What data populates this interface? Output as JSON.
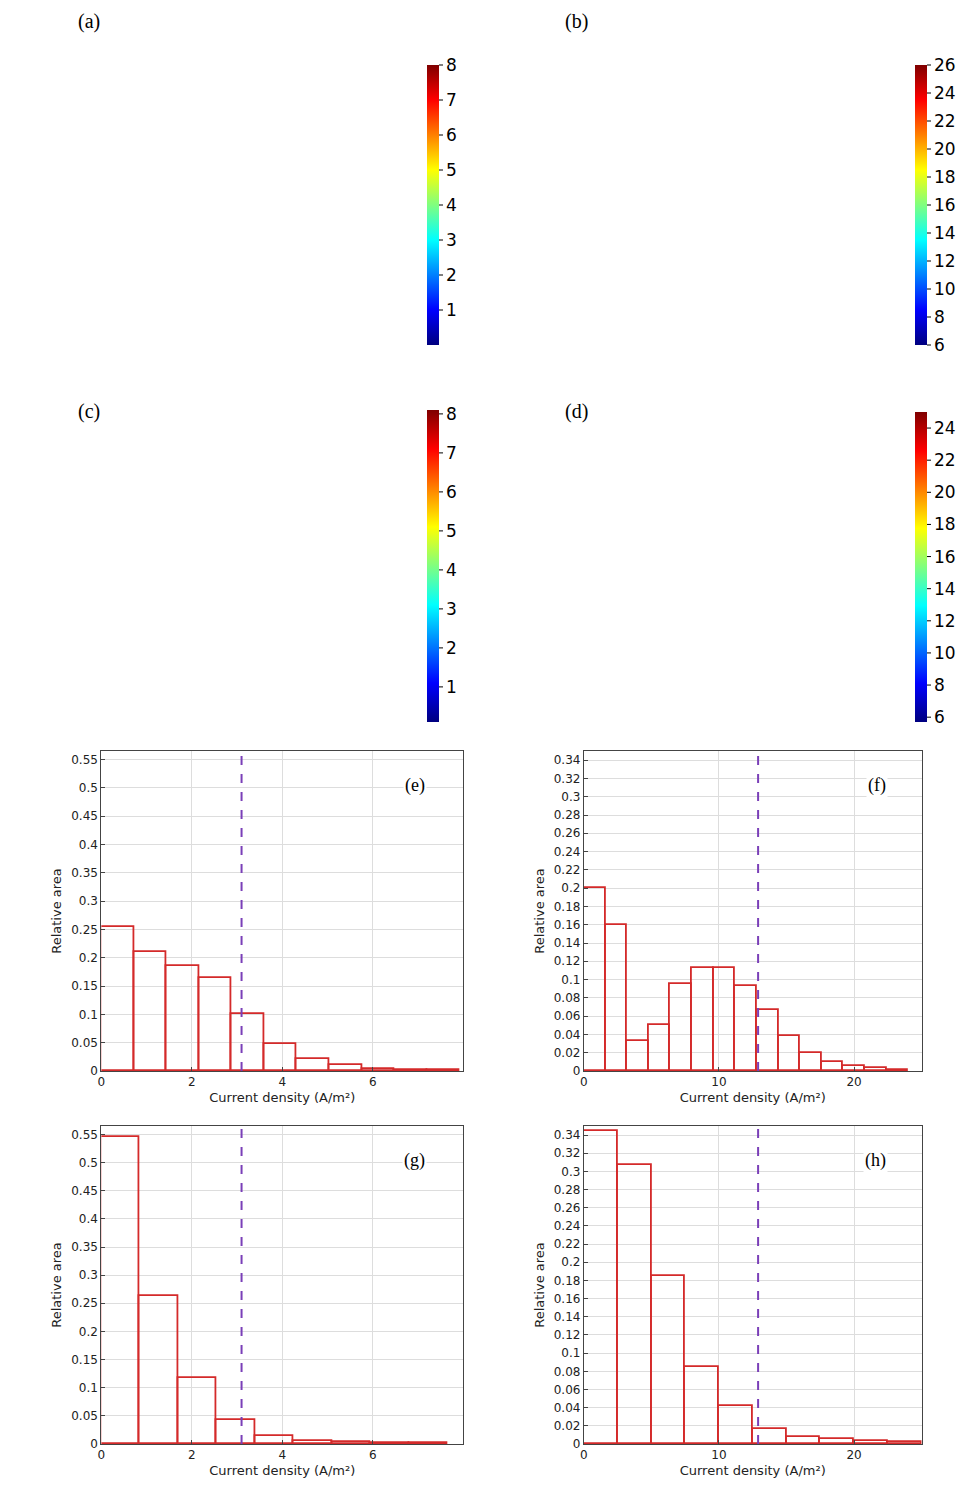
{
  "surface_panels": [
    {
      "label": "(a)",
      "colorbar": {
        "range": [
          0,
          8
        ],
        "ticks": [
          1,
          2,
          3,
          4,
          5,
          6,
          7,
          8
        ]
      }
    },
    {
      "label": "(b)",
      "colorbar": {
        "range": [
          6,
          26
        ],
        "ticks": [
          6,
          8,
          10,
          12,
          14,
          16,
          18,
          20,
          22,
          24,
          26
        ]
      }
    },
    {
      "label": "(c)",
      "colorbar": {
        "range": [
          0.1,
          8.1
        ],
        "ticks": [
          1,
          2,
          3,
          4,
          5,
          6,
          7,
          8
        ]
      }
    },
    {
      "label": "(d)",
      "colorbar": {
        "range": [
          5.7,
          25
        ],
        "ticks": [
          6,
          8,
          10,
          12,
          14,
          16,
          18,
          20,
          22,
          24
        ]
      }
    }
  ],
  "chart_data": [
    {
      "type": "histogram",
      "panel_label": "(e)",
      "xlabel": "Current density (A/m²)",
      "ylabel": "Relative area",
      "bins": [
        0,
        0.72,
        1.44,
        2.16,
        2.88,
        3.6,
        4.32,
        5.04,
        5.76,
        6.48,
        7.2,
        7.92
      ],
      "values": [
        0.255,
        0.21,
        0.185,
        0.165,
        0.1,
        0.048,
        0.022,
        0.01,
        0.004,
        0.002,
        0.001
      ],
      "color": "#d42a2a",
      "xlim": [
        0,
        8
      ],
      "xticks": [
        0,
        2,
        4,
        6
      ],
      "ylim": [
        0,
        0.565
      ],
      "yticks": [
        0,
        0.05,
        0.1,
        0.15,
        0.2,
        0.25,
        0.3,
        0.35,
        0.4,
        0.45,
        0.5,
        0.55
      ],
      "grid": true,
      "vline": {
        "x": 3.1,
        "color": "#7a3fb8",
        "line_style": "dash"
      }
    },
    {
      "type": "histogram",
      "panel_label": "(f)",
      "xlabel": "Current density (A/m²)",
      "ylabel": "Relative area",
      "bins": [
        0,
        1.6,
        3.2,
        4.8,
        6.4,
        8,
        9.6,
        11.2,
        12.8,
        14.4,
        16,
        17.6,
        19.2,
        20.8,
        22.4,
        24
      ],
      "values": [
        0.2,
        0.16,
        0.033,
        0.05,
        0.095,
        0.113,
        0.113,
        0.093,
        0.067,
        0.038,
        0.02,
        0.01,
        0.005,
        0.003,
        0.001
      ],
      "color": "#d42a2a",
      "xlim": [
        0,
        25
      ],
      "xticks": [
        0,
        10,
        20
      ],
      "ylim": [
        0,
        0.35
      ],
      "yticks": [
        0,
        0.02,
        0.04,
        0.06,
        0.08,
        0.1,
        0.12,
        0.14,
        0.16,
        0.18,
        0.2,
        0.22,
        0.24,
        0.26,
        0.28,
        0.3,
        0.32,
        0.34
      ],
      "grid": true,
      "vline": {
        "x": 12.9,
        "color": "#7a3fb8",
        "line_style": "dash"
      }
    },
    {
      "type": "histogram",
      "panel_label": "(g)",
      "xlabel": "Current density (A/m²)",
      "ylabel": "Relative area",
      "bins": [
        0,
        0.85,
        1.7,
        2.55,
        3.4,
        4.25,
        5.1,
        5.95,
        6.8,
        7.65
      ],
      "values": [
        0.545,
        0.263,
        0.118,
        0.042,
        0.015,
        0.006,
        0.003,
        0.001,
        0.001
      ],
      "color": "#d42a2a",
      "xlim": [
        0,
        8
      ],
      "xticks": [
        0,
        2,
        4,
        6
      ],
      "ylim": [
        0,
        0.565
      ],
      "yticks": [
        0,
        0.05,
        0.1,
        0.15,
        0.2,
        0.25,
        0.3,
        0.35,
        0.4,
        0.45,
        0.5,
        0.55
      ],
      "grid": true,
      "vline": {
        "x": 3.1,
        "color": "#7a3fb8",
        "line_style": "dash"
      }
    },
    {
      "type": "histogram",
      "panel_label": "(h)",
      "xlabel": "Current density (A/m²)",
      "ylabel": "Relative area",
      "bins": [
        0,
        2.5,
        5,
        7.5,
        10,
        12.5,
        15,
        17.5,
        20,
        22.5,
        25
      ],
      "values": [
        0.345,
        0.307,
        0.185,
        0.085,
        0.042,
        0.016,
        0.008,
        0.005,
        0.003,
        0.002
      ],
      "color": "#d42a2a",
      "xlim": [
        0,
        25
      ],
      "xticks": [
        0,
        10,
        20
      ],
      "ylim": [
        0,
        0.35
      ],
      "yticks": [
        0,
        0.02,
        0.04,
        0.06,
        0.08,
        0.1,
        0.12,
        0.14,
        0.16,
        0.18,
        0.2,
        0.22,
        0.24,
        0.26,
        0.28,
        0.3,
        0.32,
        0.34
      ],
      "grid": true,
      "vline": {
        "x": 12.9,
        "color": "#7a3fb8",
        "line_style": "dash"
      }
    }
  ]
}
